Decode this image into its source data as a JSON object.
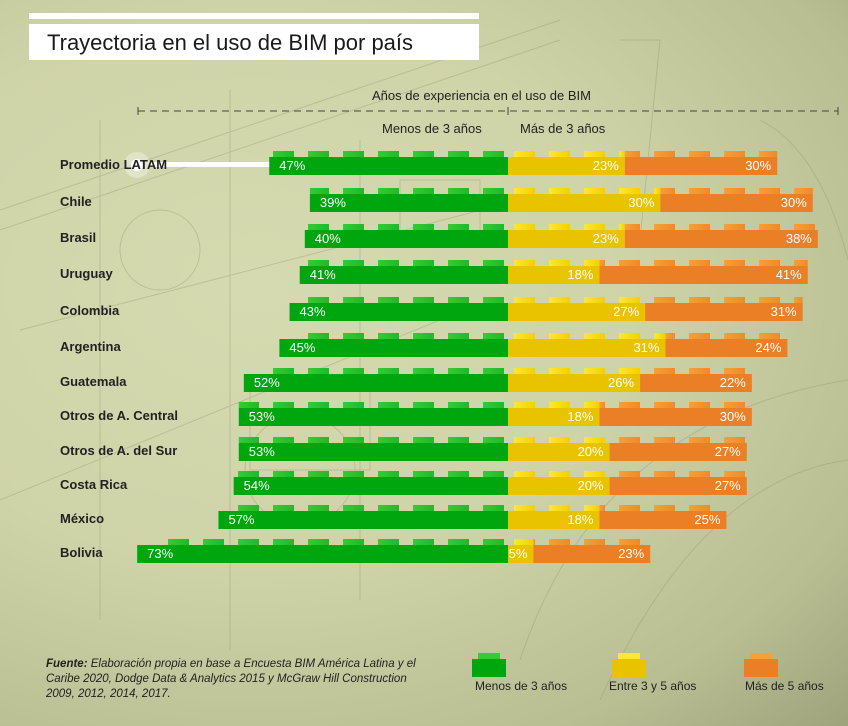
{
  "title": "Trayectoria en el uso de BIM por país",
  "axis_header": {
    "title": "Años de experiencia en el uso de BIM",
    "left_group": "Menos de 3 años",
    "right_group": "Más de 3 años"
  },
  "colors": {
    "menos_3": "#00a60e",
    "menos_3_stud": "#33cc33",
    "entre_3_5": "#e9c300",
    "entre_3_5_stud": "#ffe733",
    "mas_5": "#ea7f26",
    "mas_5_stud": "#f6a036"
  },
  "chart_data": {
    "type": "bar",
    "orientation": "horizontal",
    "stacked": true,
    "diverging": true,
    "title": "Trayectoria en el uso de BIM por país",
    "xlabel": "Años de experiencia en el uso de BIM",
    "unit": "%",
    "categories": [
      "Promedio LATAM",
      "Chile",
      "Brasil",
      "Uruguay",
      "Colombia",
      "Argentina",
      "Guatemala",
      "Otros de A. Central",
      "Otros de A. del Sur",
      "Costa Rica",
      "México",
      "Bolivia"
    ],
    "series": [
      {
        "name": "Menos de 3 años",
        "values": [
          47,
          39,
          40,
          41,
          43,
          45,
          52,
          53,
          53,
          54,
          57,
          73
        ]
      },
      {
        "name": "Entre 3 y 5 años",
        "values": [
          23,
          30,
          23,
          18,
          27,
          31,
          26,
          18,
          20,
          20,
          18,
          5
        ]
      },
      {
        "name": "Más de 5 años",
        "values": [
          30,
          30,
          38,
          41,
          31,
          24,
          22,
          30,
          27,
          27,
          25,
          23
        ]
      }
    ],
    "legend": [
      "Menos de 3 años",
      "Entre 3 y 5 años",
      "Más de 5 años"
    ],
    "legend_position": "bottom-right",
    "highlighted_category": "Promedio LATAM",
    "grid": false
  },
  "legend": [
    {
      "label": "Menos de 3 años"
    },
    {
      "label": "Entre 3 y 5 años"
    },
    {
      "label": "Más de 5 años"
    }
  ],
  "source": {
    "label": "Fuente:",
    "text": "Elaboración propia en base a Encuesta BIM América Latina y el Caribe 2020, Dodge Data & Analytics 2015 y McGraw Hill Construction 2009, 2012, 2014, 2017."
  }
}
